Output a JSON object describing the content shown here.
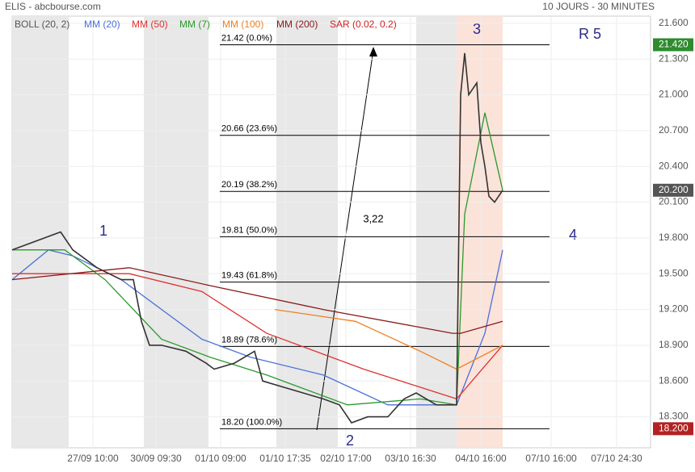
{
  "header": {
    "title": "ELIS - abcbourse.com",
    "period": "10 JOURS - 30 MINUTES"
  },
  "chart_data": {
    "type": "line",
    "xlim": [
      0,
      197.5
    ],
    "ylim": [
      18.04,
      21.66
    ],
    "xticks": [
      {
        "value": 25,
        "label": "27/09 10:00"
      },
      {
        "value": 44.5,
        "label": "30/09 09:30"
      },
      {
        "value": 64.5,
        "label": "01/10 09:00"
      },
      {
        "value": 84.5,
        "label": "01/10 17:35"
      },
      {
        "value": 103.25,
        "label": "02/10 17:00"
      },
      {
        "value": 123.25,
        "label": "03/10 16:30"
      },
      {
        "value": 145,
        "label": "04/10 16:00"
      },
      {
        "value": 166.75,
        "label": "07/10 16:00"
      },
      {
        "value": 187,
        "label": "07/10 24:30"
      }
    ],
    "yticks": [
      {
        "value": 18.3,
        "label": "18.300"
      },
      {
        "value": 18.6,
        "label": "18.600"
      },
      {
        "value": 18.9,
        "label": "18.900"
      },
      {
        "value": 19.2,
        "label": "19.200"
      },
      {
        "value": 19.5,
        "label": "19.500"
      },
      {
        "value": 19.8,
        "label": "19.800"
      },
      {
        "value": 20.1,
        "label": "20.100"
      },
      {
        "value": 20.4,
        "label": "20.400"
      },
      {
        "value": 20.7,
        "label": "20.700"
      },
      {
        "value": 21.0,
        "label": "21.000"
      },
      {
        "value": 21.3,
        "label": "21.300"
      },
      {
        "value": 21.6,
        "label": "21.600"
      }
    ],
    "grid": true,
    "price": {
      "color": "#333333",
      "x": [
        0,
        15,
        18.75,
        26.25,
        33.75,
        37.5,
        40,
        42.5,
        46.25,
        53.75,
        60,
        62.5,
        68.75,
        75,
        77.5,
        83.75,
        90,
        96.25,
        101.25,
        105,
        110,
        116.25,
        121.25,
        125,
        131.25,
        137.5,
        138.75,
        140,
        141.25,
        143.75,
        145,
        146.25,
        147.5,
        149.25,
        151.75
      ],
      "values": [
        19.7,
        19.85,
        19.7,
        19.55,
        19.45,
        19.45,
        19.1,
        18.9,
        18.9,
        18.85,
        18.75,
        18.7,
        18.75,
        18.85,
        18.6,
        18.55,
        18.5,
        18.45,
        18.4,
        18.25,
        18.3,
        18.3,
        18.45,
        18.5,
        18.4,
        18.4,
        21.0,
        21.35,
        21.0,
        21.1,
        20.6,
        20.4,
        20.15,
        20.1,
        20.2
      ]
    },
    "legend_extra": [
      {
        "name": "BOLL (20, 2)",
        "color": "#555555"
      }
    ],
    "series": [
      {
        "name": "MM (20)",
        "color": "#4a6fdc",
        "x": [
          0,
          11.25,
          18.75,
          33.75,
          46.25,
          58.75,
          73.75,
          96.25,
          116.25,
          131.25,
          137.5,
          146.25,
          151.75
        ],
        "values": [
          19.45,
          19.7,
          19.65,
          19.45,
          19.2,
          18.95,
          18.8,
          18.65,
          18.4,
          18.4,
          18.4,
          19.0,
          19.7
        ]
      },
      {
        "name": "MM (50)",
        "color": "#e03030",
        "x": [
          0,
          21.25,
          36.25,
          58.75,
          78.75,
          108.75,
          137.5,
          151.75
        ],
        "values": [
          19.5,
          19.5,
          19.5,
          19.35,
          19.0,
          18.7,
          18.45,
          18.9
        ]
      },
      {
        "name": "MM (7)",
        "color": "#2a9a2a",
        "x": [
          0,
          16.25,
          28.75,
          46.25,
          61.25,
          78.75,
          103.75,
          126.25,
          137.5,
          140,
          146.25,
          151.75
        ],
        "values": [
          19.7,
          19.7,
          19.45,
          18.95,
          18.8,
          18.65,
          18.4,
          18.45,
          18.4,
          20.0,
          20.85,
          20.2
        ]
      },
      {
        "name": "MM (100)",
        "color": "#f08020",
        "x": [
          81.25,
          106.25,
          126.25,
          137.5,
          151.75
        ],
        "values": [
          19.2,
          19.1,
          18.85,
          18.7,
          18.9
        ]
      },
      {
        "name": "MM (200)",
        "color": "#8b1a1a",
        "x": [
          0,
          36.25,
          61.25,
          96.25,
          136.25,
          138.75,
          151.75
        ],
        "values": [
          19.45,
          19.55,
          19.4,
          19.2,
          19.0,
          19.0,
          19.1
        ]
      }
    ],
    "legend_extra_after": [
      {
        "name": "SAR (0.02, 0.2)",
        "color": "#d02020"
      }
    ],
    "levels": [
      {
        "value": 21.42,
        "label": "21.42  (0.0%)"
      },
      {
        "value": 20.66,
        "label": "20.66  (23.6%)"
      },
      {
        "value": 20.19,
        "label": "20.19  (38.2%)"
      },
      {
        "value": 19.81,
        "label": "19.81  (50.0%)"
      },
      {
        "value": 19.43,
        "label": "19.43  (61.8%)"
      },
      {
        "value": 18.89,
        "label": "18.89  (78.6%)"
      },
      {
        "value": 18.2,
        "label": "18.20  (100.0%)"
      }
    ],
    "badges": [
      {
        "value": 21.42,
        "label": "21.420",
        "color": "#2e8b2e"
      },
      {
        "value": 20.2,
        "label": "20.200",
        "color": "#555555"
      },
      {
        "value": 18.2,
        "label": "18.200",
        "color": "#b22222"
      }
    ],
    "annotations": [
      "1",
      "2",
      "3",
      "4",
      "R 5",
      "3,22"
    ]
  }
}
